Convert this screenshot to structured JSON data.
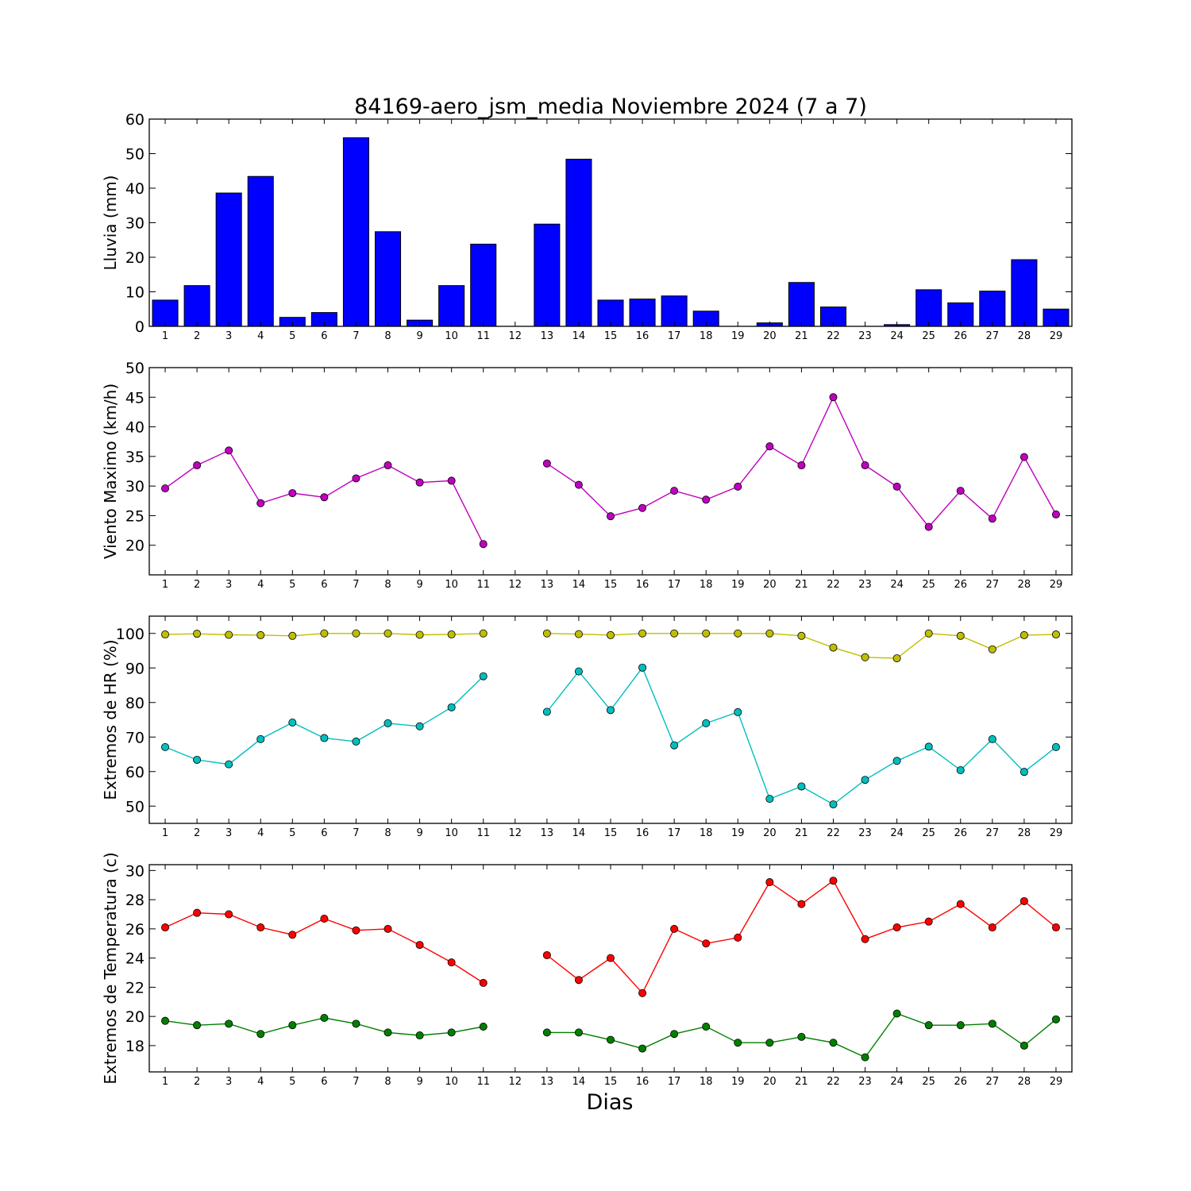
{
  "title": "84169-aero_jsm_media Noviembre 2024  (7 a 7)",
  "chart_data": [
    {
      "type": "bar",
      "ylabel": "Lluvia (mm)",
      "xlabel": "",
      "categories": [
        "1",
        "2",
        "3",
        "4",
        "5",
        "6",
        "7",
        "8",
        "9",
        "10",
        "11",
        "12",
        "13",
        "14",
        "15",
        "16",
        "17",
        "18",
        "19",
        "20",
        "21",
        "22",
        "23",
        "24",
        "25",
        "26",
        "27",
        "28",
        "29"
      ],
      "ylim": [
        0,
        60
      ],
      "yticks": [
        0,
        10,
        20,
        30,
        40,
        50,
        60
      ],
      "bar_color": "#0000ff",
      "values": [
        7.6,
        11.8,
        38.6,
        43.4,
        2.6,
        4.0,
        54.6,
        27.4,
        1.8,
        11.8,
        23.8,
        0,
        29.6,
        48.4,
        7.6,
        7.9,
        8.8,
        4.4,
        0,
        1.0,
        12.7,
        5.6,
        0,
        0.5,
        10.6,
        6.8,
        10.2,
        19.3,
        5.0
      ]
    },
    {
      "type": "line",
      "ylabel": "Viento Maximo (km/h)",
      "xlabel": "",
      "x": [
        1,
        2,
        3,
        4,
        5,
        6,
        7,
        8,
        9,
        10,
        11,
        12,
        13,
        14,
        15,
        16,
        17,
        18,
        19,
        20,
        21,
        22,
        23,
        24,
        25,
        26,
        27,
        28,
        29
      ],
      "ylim": [
        15,
        50
      ],
      "yticks": [
        20,
        25,
        30,
        35,
        40,
        45,
        50
      ],
      "series": [
        {
          "color": "#bf00bf",
          "values": [
            29.6,
            33.5,
            36.0,
            27.1,
            28.8,
            28.1,
            31.3,
            33.5,
            30.6,
            30.9,
            20.2,
            null,
            33.8,
            30.2,
            24.9,
            26.3,
            29.2,
            27.7,
            29.9,
            36.7,
            33.5,
            45.0,
            33.5,
            29.9,
            23.1,
            29.2,
            24.5,
            34.9,
            25.2
          ]
        }
      ]
    },
    {
      "type": "line",
      "ylabel": "Extremos de HR (%)",
      "xlabel": "",
      "x": [
        1,
        2,
        3,
        4,
        5,
        6,
        7,
        8,
        9,
        10,
        11,
        12,
        13,
        14,
        15,
        16,
        17,
        18,
        19,
        20,
        21,
        22,
        23,
        24,
        25,
        26,
        27,
        28,
        29
      ],
      "ylim": [
        45,
        105
      ],
      "yticks": [
        50,
        60,
        70,
        80,
        90,
        100
      ],
      "series": [
        {
          "color": "#bfbf00",
          "values": [
            99.7,
            99.9,
            99.6,
            99.5,
            99.3,
            100,
            100,
            100,
            99.6,
            99.7,
            100,
            null,
            100,
            99.8,
            99.5,
            100,
            100,
            100,
            100,
            100,
            99.3,
            95.9,
            93.1,
            92.8,
            100,
            99.3,
            95.4,
            99.5,
            99.7
          ]
        },
        {
          "color": "#00bfbf",
          "values": [
            67.1,
            63.4,
            62.1,
            69.4,
            74.2,
            69.7,
            68.7,
            74.0,
            73.1,
            78.6,
            87.6,
            null,
            77.3,
            89.0,
            77.8,
            90.1,
            67.6,
            74.0,
            77.2,
            52.1,
            55.7,
            50.5,
            57.6,
            63.1,
            67.2,
            60.4,
            69.4,
            59.9,
            67.1
          ]
        }
      ]
    },
    {
      "type": "line",
      "ylabel": "Extremos de Temperatura (c)",
      "xlabel": "Dias",
      "x": [
        1,
        2,
        3,
        4,
        5,
        6,
        7,
        8,
        9,
        10,
        11,
        12,
        13,
        14,
        15,
        16,
        17,
        18,
        19,
        20,
        21,
        22,
        23,
        24,
        25,
        26,
        27,
        28,
        29
      ],
      "ylim": [
        16.2,
        30.4
      ],
      "yticks": [
        18,
        20,
        22,
        24,
        26,
        28,
        30
      ],
      "series": [
        {
          "color": "#ff0000",
          "values": [
            26.1,
            27.1,
            27.0,
            26.1,
            25.6,
            26.7,
            25.9,
            26.0,
            24.9,
            23.7,
            22.3,
            null,
            24.2,
            22.5,
            24.0,
            21.6,
            26.0,
            25.0,
            25.4,
            29.2,
            27.7,
            29.3,
            25.3,
            26.1,
            26.5,
            27.7,
            26.1,
            27.9,
            26.1
          ]
        },
        {
          "color": "#007f00",
          "values": [
            19.7,
            19.4,
            19.5,
            18.8,
            19.4,
            19.9,
            19.5,
            18.9,
            18.7,
            18.9,
            19.3,
            null,
            18.9,
            18.9,
            18.4,
            17.8,
            18.8,
            19.3,
            18.2,
            18.2,
            18.6,
            18.2,
            17.2,
            20.2,
            19.4,
            19.4,
            19.5,
            18.0,
            19.8
          ]
        }
      ]
    }
  ]
}
